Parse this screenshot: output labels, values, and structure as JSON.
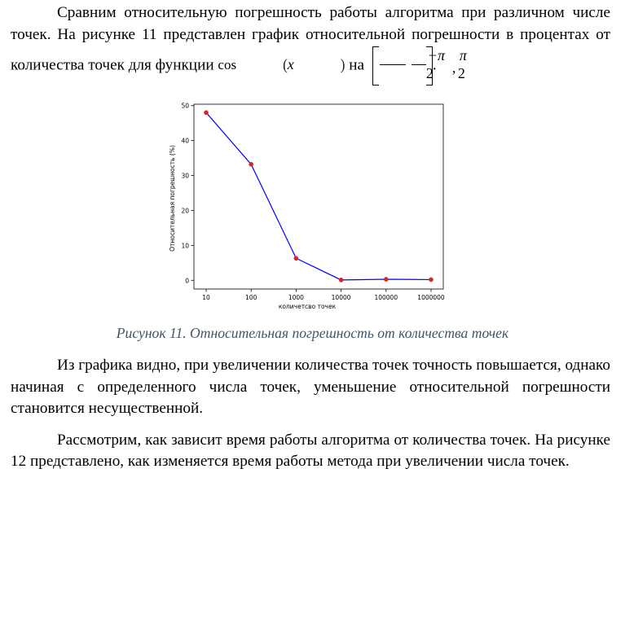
{
  "paragraph1": {
    "text_a": "Сравним относительную погрешность работы алгоритма при различном числе точек. На рисунке 11 представлен график относительной погрешности в процентах от количества точек для функции ",
    "func": "cos",
    "var": "x",
    "text_b": " на ",
    "interval_left_num": "−π",
    "interval_left_den": "2",
    "interval_right_num": "π",
    "interval_right_den": "2",
    "end": "."
  },
  "chart_data": {
    "type": "line",
    "categories": [
      "10",
      "100",
      "1000",
      "10000",
      "100000",
      "1000000"
    ],
    "series": [
      {
        "values": [
          48.0,
          33.2,
          6.3,
          0.1,
          0.3,
          0.2
        ]
      }
    ],
    "title": "",
    "xlabel": "количетсво точек",
    "ylabel": "Относительная погрешность (%)",
    "ylim": [
      -2.5,
      50.4
    ],
    "yticks": [
      "0",
      "10",
      "20",
      "30",
      "40",
      "50"
    ],
    "line_color": "#0000ff",
    "marker_color": "#d62728",
    "grid": false
  },
  "caption": "Рисунок 11. Относительная погрешность от количества точек",
  "paragraph2": "Из графика видно, при увеличении количества точек точность повышается, однако начиная с определенного числа точек, уменьшение относительной погрешности становится несущественной.",
  "paragraph3": "Рассмотрим, как зависит время работы алгоритма от количества точек. На рисунке 12 представлено, как изменяется время работы метода при увеличении числа точек."
}
